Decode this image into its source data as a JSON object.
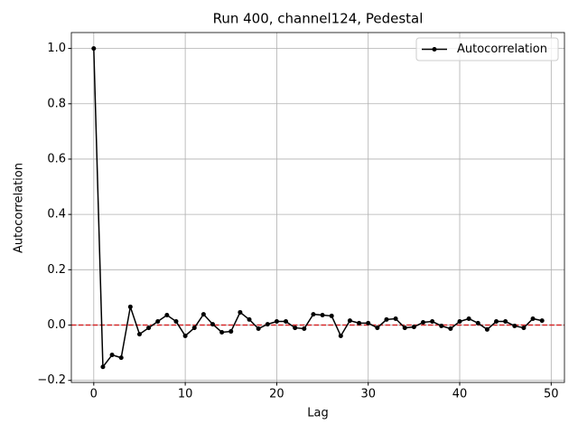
{
  "chart_data": {
    "type": "line",
    "title": "Run 400, channel124, Pedestal",
    "xlabel": "Lag",
    "ylabel": "Autocorrelation",
    "x": [
      0,
      1,
      2,
      3,
      4,
      5,
      6,
      7,
      8,
      9,
      10,
      11,
      12,
      13,
      14,
      15,
      16,
      17,
      18,
      19,
      20,
      21,
      22,
      23,
      24,
      25,
      26,
      27,
      28,
      29,
      30,
      31,
      32,
      33,
      34,
      35,
      36,
      37,
      38,
      39,
      40,
      41,
      42,
      43,
      44,
      45,
      46,
      47,
      48,
      49
    ],
    "series": [
      {
        "name": "Autocorrelation",
        "color": "#000000",
        "values": [
          1.0,
          -0.151,
          -0.108,
          -0.118,
          0.066,
          -0.033,
          -0.01,
          0.013,
          0.036,
          0.013,
          -0.039,
          -0.01,
          0.039,
          0.003,
          -0.026,
          -0.023,
          0.046,
          0.02,
          -0.013,
          0.003,
          0.013,
          0.013,
          -0.01,
          -0.013,
          0.039,
          0.036,
          0.033,
          -0.039,
          0.016,
          0.007,
          0.007,
          -0.01,
          0.02,
          0.023,
          -0.01,
          -0.007,
          0.01,
          0.013,
          -0.003,
          -0.013,
          0.013,
          0.023,
          0.007,
          -0.016,
          0.013,
          0.013,
          -0.003,
          -0.01,
          0.023,
          0.016
        ]
      }
    ],
    "hline": 0,
    "hline_color": "#d62728",
    "xlim": [
      -2.45,
      51.45
    ],
    "xticks": [
      0,
      10,
      20,
      30,
      40,
      50
    ],
    "ylim": [
      -0.2075,
      1.0575
    ],
    "yticks": [
      {
        "value": -0.2,
        "label": "−0.2"
      },
      {
        "value": 0,
        "label": "0.0"
      },
      {
        "value": 0.2,
        "label": "0.2"
      },
      {
        "value": 0.4,
        "label": "0.4"
      },
      {
        "value": 0.6,
        "label": "0.6"
      },
      {
        "value": 0.8,
        "label": "0.8"
      },
      {
        "value": 1.0,
        "label": "1.0"
      }
    ],
    "grid": true,
    "legend": "upper right"
  }
}
